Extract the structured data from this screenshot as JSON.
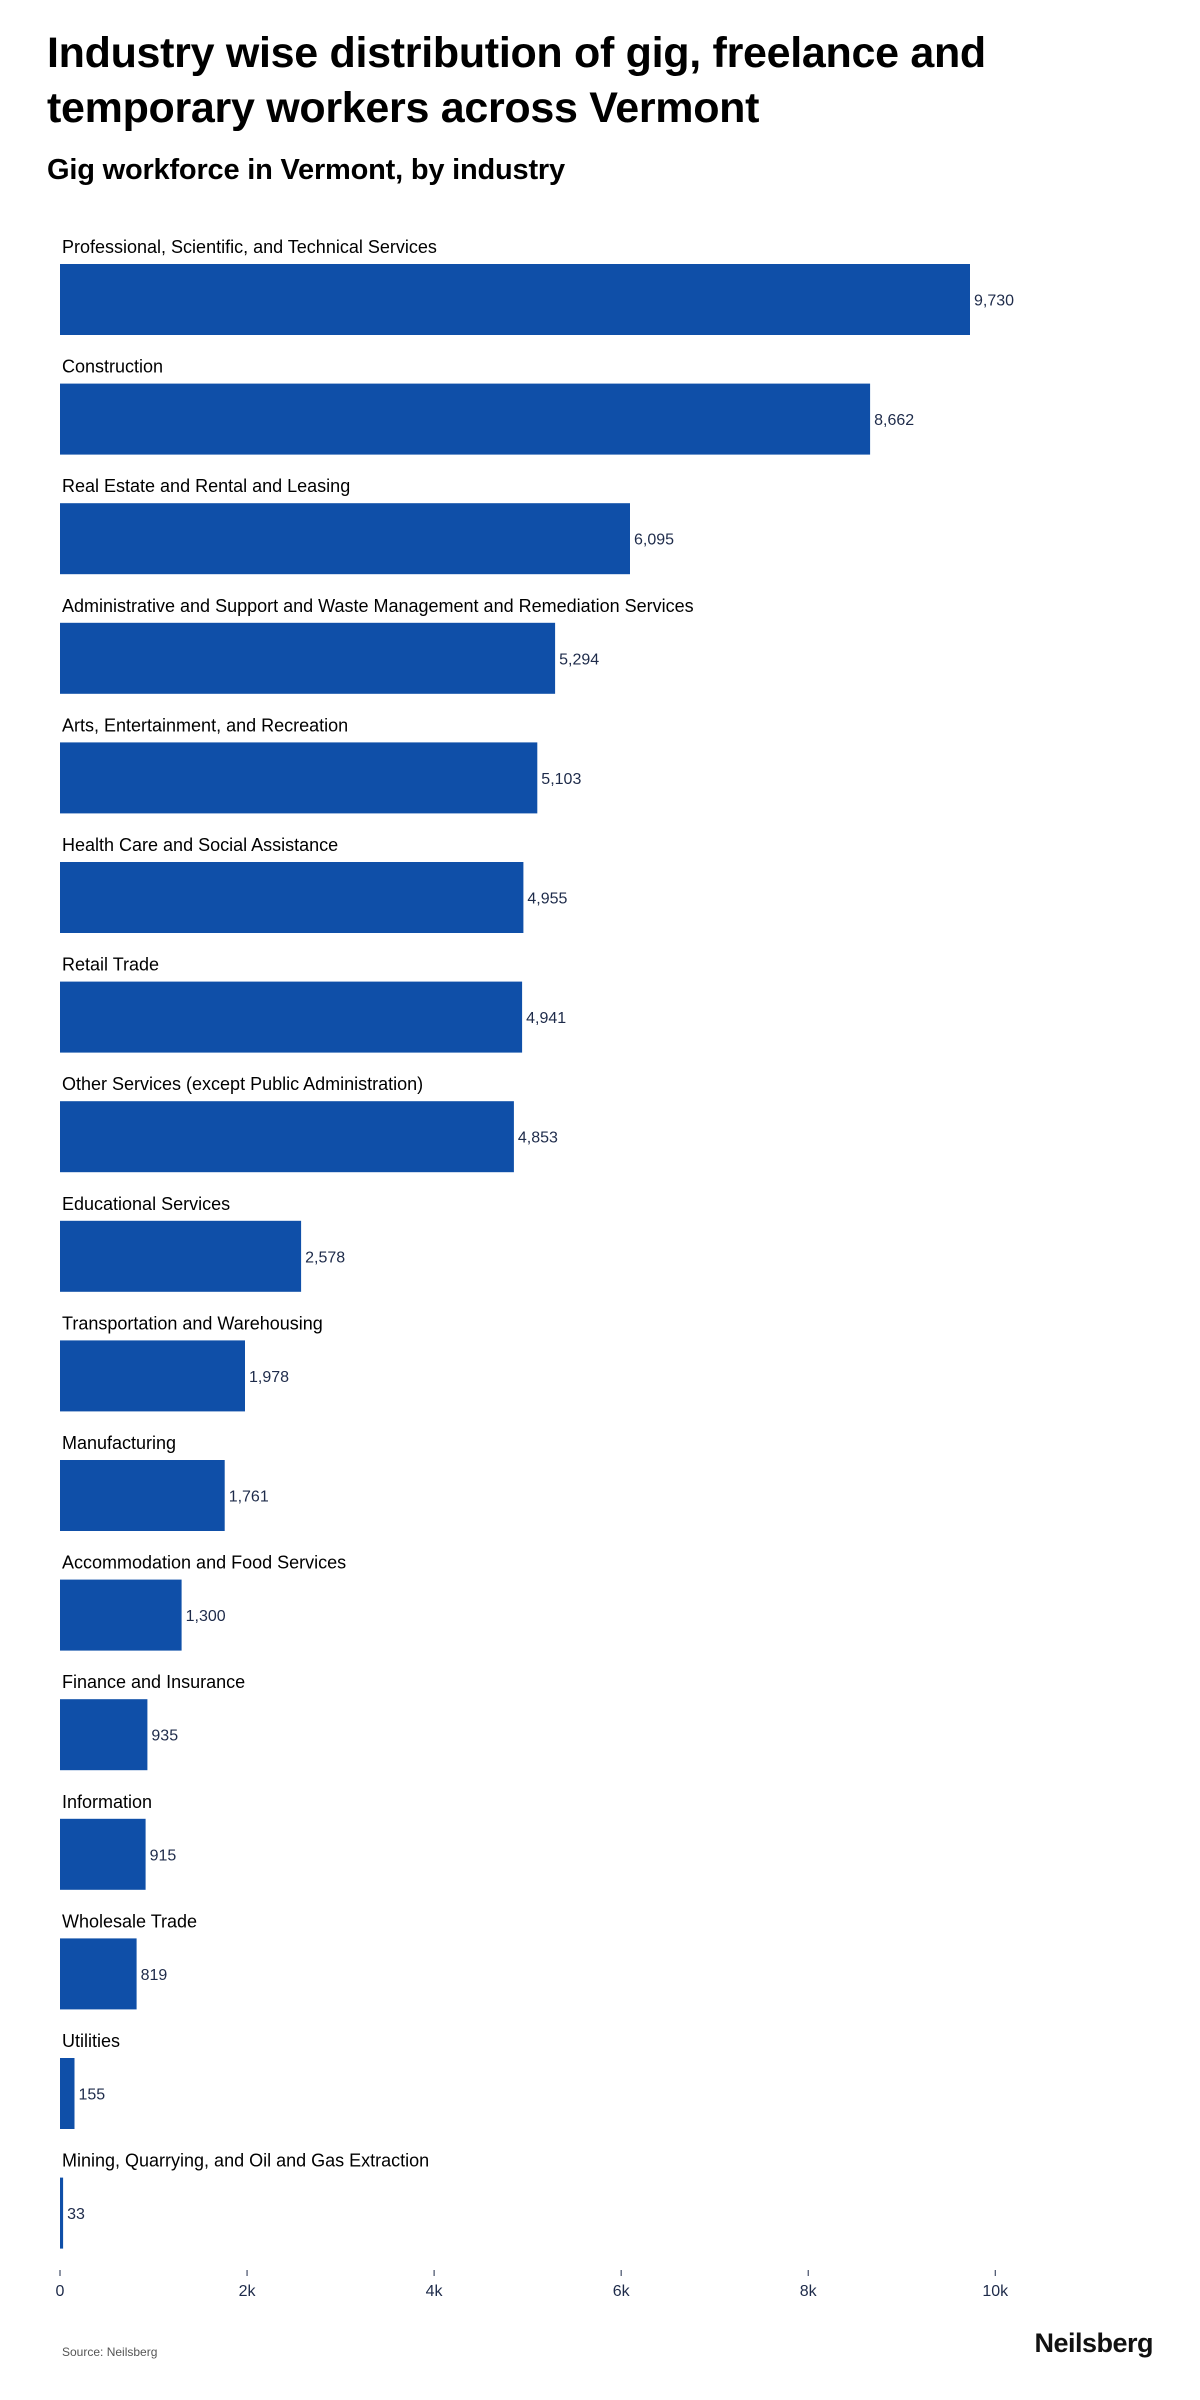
{
  "title": "Industry wise distribution of gig, freelance and temporary workers across Vermont",
  "subtitle": "Gig workforce in Vermont, by industry",
  "source": "Source: Neilsberg",
  "logo": "Neilsberg",
  "colors": {
    "bar": "#0f4fa8",
    "label": "#000000",
    "value": "#1e2b4a",
    "axis": "#1e2b4a"
  },
  "chart_data": {
    "type": "bar",
    "orientation": "horizontal",
    "categories": [
      "Professional, Scientific, and Technical Services",
      "Construction",
      "Real Estate and Rental and Leasing",
      "Administrative and Support and Waste Management and Remediation Services",
      "Arts, Entertainment, and Recreation",
      "Health Care and Social Assistance",
      "Retail Trade",
      "Other Services (except Public Administration)",
      "Educational Services",
      "Transportation and Warehousing",
      "Manufacturing",
      "Accommodation and Food Services",
      "Finance and Insurance",
      "Information",
      "Wholesale Trade",
      "Utilities",
      "Mining, Quarrying, and Oil and Gas Extraction"
    ],
    "values": [
      9730,
      8662,
      6095,
      5294,
      5103,
      4955,
      4941,
      4853,
      2578,
      1978,
      1761,
      1300,
      935,
      915,
      819,
      155,
      33
    ],
    "value_labels": [
      "9,730",
      "8,662",
      "6,095",
      "5,294",
      "5,103",
      "4,955",
      "4,941",
      "4,853",
      "2,578",
      "1,978",
      "1,761",
      "1,300",
      "935",
      "915",
      "819",
      "155",
      "33"
    ],
    "xticks": [
      0,
      2000,
      4000,
      6000,
      8000,
      10000
    ],
    "xtick_labels": [
      "0",
      "2k",
      "4k",
      "6k",
      "8k",
      "10k"
    ],
    "xlim": [
      0,
      10000
    ],
    "grid": false,
    "legend": "none"
  }
}
